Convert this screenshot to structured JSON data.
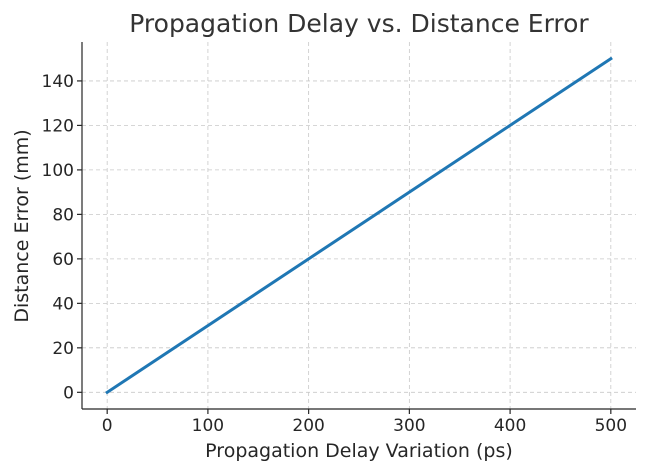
{
  "chart_data": {
    "type": "line",
    "title": "Propagation Delay vs. Distance Error",
    "xlabel": "Propagation Delay Variation (ps)",
    "ylabel": "Distance Error (mm)",
    "xlim": [
      -25,
      525
    ],
    "ylim": [
      -7.5,
      157.5
    ],
    "xticks": [
      0,
      100,
      200,
      300,
      400,
      500
    ],
    "yticks": [
      0,
      20,
      40,
      60,
      80,
      100,
      120,
      140
    ],
    "grid": true,
    "series": [
      {
        "color": "#1f77b4",
        "x": [
          0,
          100,
          200,
          300,
          400,
          500
        ],
        "y": [
          0,
          30,
          60,
          90,
          120,
          150
        ]
      }
    ]
  }
}
